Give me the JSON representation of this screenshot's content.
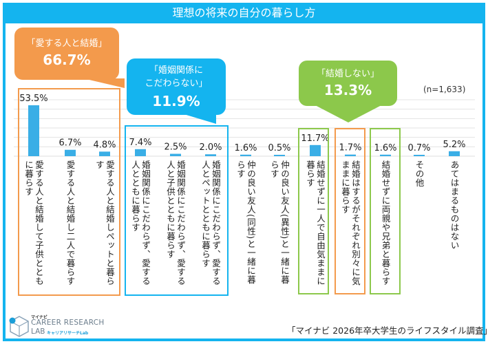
{
  "title": "理想の将来の自分の暮らし方",
  "sample_size": "(n=1,633)",
  "footer_source": "「マイナビ 2026年卒大学生のライフスタイル調査」",
  "logo": {
    "top": "マイナビ",
    "main": "CAREER RESEARCH",
    "lab": "LAB",
    "kana": "キャリアリサーチLab"
  },
  "colors": {
    "header": "#14b4ef",
    "bar": "#3aaee6",
    "orange": "#f39a4c",
    "blue": "#14b4ef",
    "green": "#8cc84b",
    "grid": "#e3e3e3"
  },
  "callouts": [
    {
      "id": "love",
      "label_line1": "「愛する人と結婚」",
      "label_line2": "",
      "value": "66.7%",
      "color": "orange"
    },
    {
      "id": "nomarry",
      "label_line1": "「婚姻関係に",
      "label_line2": "こだわらない」",
      "value": "11.9%",
      "color": "blue"
    },
    {
      "id": "single",
      "label_line1": "「結婚しない」",
      "label_line2": "",
      "value": "13.3%",
      "color": "green"
    }
  ],
  "chart_data": {
    "type": "bar",
    "title": "理想の将来の自分の暮らし方",
    "xlabel": "",
    "ylabel": "",
    "ylim": [
      0,
      60
    ],
    "grid": true,
    "categories": [
      "愛する人と結婚して子供とともに暮らす",
      "愛する人と結婚し二人で暮らす",
      "愛する人と結婚しペットと暮らす",
      "婚姻関係にこだわらず、愛する人とともに暮らす",
      "婚姻関係にこだわらず、愛する人と子供とともに暮らす",
      "婚姻関係にこだわらず、愛する人とペットとともに暮らす",
      "仲の良い友人(同性)と一緒に暮らす",
      "仲の良い友人(異性)と一緒に暮らす",
      "結婚せずに一人で自由気ままに暮らす",
      "結婚はするがそれぞれ別々に気ままに暮らす",
      "結婚せずに両親や兄弟と暮らす",
      "その他",
      "あてはまるものはない"
    ],
    "values": [
      53.5,
      6.7,
      4.8,
      7.4,
      2.5,
      2.0,
      1.6,
      0.5,
      11.7,
      1.7,
      1.6,
      0.7,
      5.2
    ],
    "value_labels": [
      "53.5%",
      "6.7%",
      "4.8%",
      "7.4%",
      "2.5%",
      "2.0%",
      "1.6%",
      "0.5%",
      "11.7%",
      "1.7%",
      "1.6%",
      "0.7%",
      "5.2%"
    ],
    "groups": [
      {
        "name": "「愛する人と結婚」",
        "total": "66.7%",
        "indices": [
          0,
          1,
          2
        ],
        "color": "orange"
      },
      {
        "name": "「婚姻関係にこだわらない」",
        "total": "11.9%",
        "indices": [
          3,
          4,
          5
        ],
        "color": "blue"
      },
      {
        "name": "「結婚しない」",
        "total": "13.3%",
        "indices": [
          8,
          10
        ],
        "color": "green"
      },
      {
        "name": "",
        "total": "",
        "indices": [
          9
        ],
        "color": "orange"
      }
    ],
    "annotation": "(n=1,633)"
  }
}
